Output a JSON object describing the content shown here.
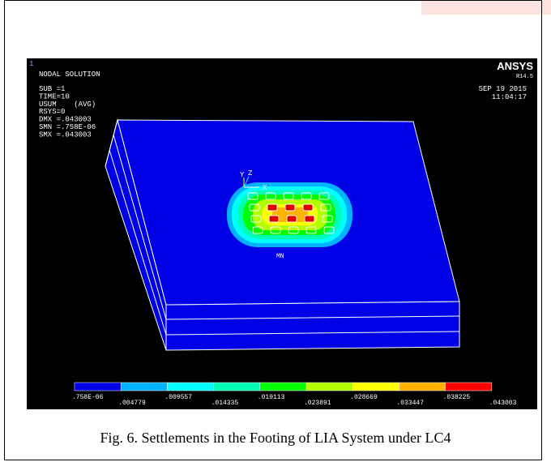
{
  "figure": {
    "panel": {
      "label": "1",
      "title": "NODAL SOLUTION",
      "info": [
        "SUB =1",
        "TIME=10",
        "USUM    (AVG)",
        "RSYS=0",
        "DMX =.043003",
        "SMN =.758E-06",
        "SMX =.043003"
      ],
      "brand": "ANSYS",
      "version": "R14.5",
      "date": "SEP 19 2015",
      "time": "11:04:17",
      "min_label": "MN",
      "axes": [
        "Y",
        "Z",
        "X"
      ]
    },
    "legend": {
      "labels": [
        ".758E-06",
        ".004779",
        ".009557",
        ".014335",
        ".019113",
        ".023891",
        ".028669",
        ".033447",
        ".038225",
        ".043003"
      ]
    }
  },
  "caption": "Fig. 6. Settlements in the Footing  of LIA System under LC4"
}
